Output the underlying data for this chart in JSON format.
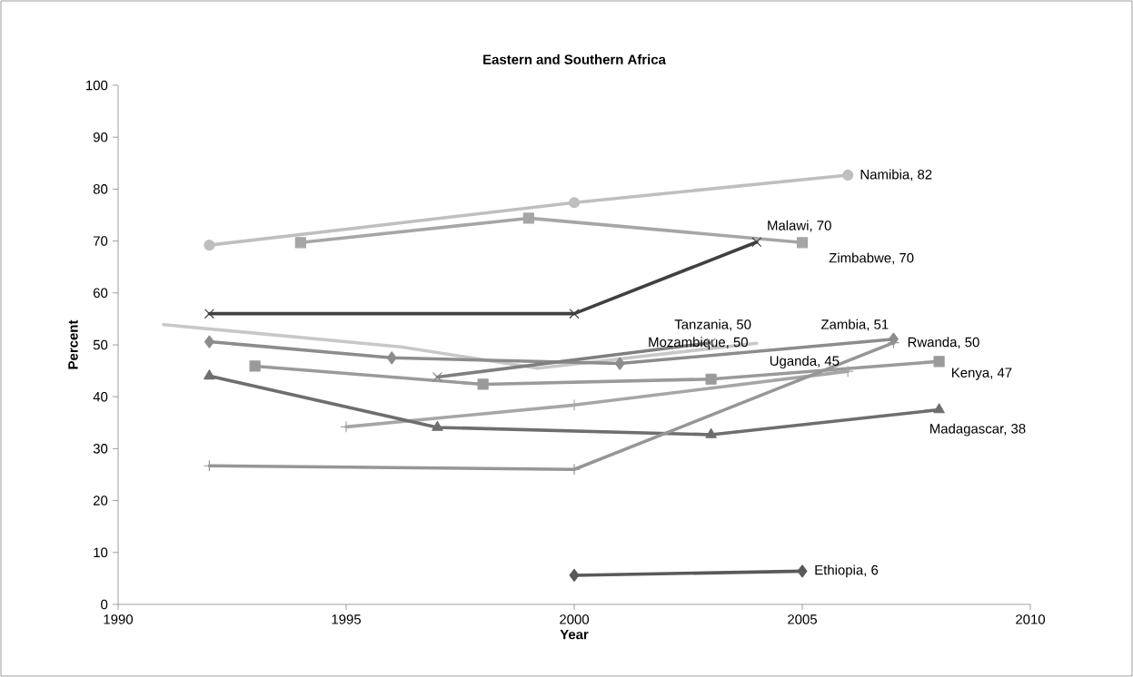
{
  "chart_data": {
    "type": "line",
    "title": "Eastern and Southern Africa",
    "xlabel": "Year",
    "ylabel": "Percent",
    "xlim": [
      1990,
      2010
    ],
    "xticks": [
      1990,
      1995,
      2000,
      2005,
      2010
    ],
    "ylim": [
      0,
      100
    ],
    "yticks": [
      0,
      10,
      20,
      30,
      40,
      50,
      60,
      70,
      80,
      90,
      100
    ],
    "grid": false,
    "series": [
      {
        "color": "#bfbfbf",
        "marker": "circle",
        "x": [
          1992,
          2000,
          2006
        ],
        "values": [
          69.2,
          77.4,
          82.7
        ]
      },
      {
        "color": "#a6a6a6",
        "marker": "square",
        "x": [
          1994,
          1999,
          2005
        ],
        "values": [
          69.7,
          74.4,
          69.7
        ]
      },
      {
        "color": "#404040",
        "marker": "cross",
        "x": [
          1992,
          2000,
          2004
        ],
        "values": [
          56,
          56,
          69.8
        ]
      },
      {
        "color": "#c8c8c8",
        "marker": "none",
        "x": [
          1991,
          1996.2,
          1999.2,
          2004
        ],
        "values": [
          53.9,
          49.6,
          45.5,
          50.3
        ]
      },
      {
        "color": "#8c8c8c",
        "marker": "diamond",
        "x": [
          1992,
          1996,
          2001,
          2007
        ],
        "values": [
          50.6,
          47.5,
          46.4,
          51.1
        ]
      },
      {
        "color": "#9a9a9a",
        "marker": "square",
        "x": [
          1993,
          1998,
          2003,
          2008
        ],
        "values": [
          45.9,
          42.4,
          43.4,
          46.8
        ]
      },
      {
        "color": "#7f7f7f",
        "marker": "cross",
        "x": [
          1997,
          2003
        ],
        "values": [
          43.8,
          50.4
        ]
      },
      {
        "color": "#a6a6a6",
        "marker": "plus",
        "x": [
          1995,
          2000,
          2006
        ],
        "values": [
          34.2,
          38.4,
          44.9
        ]
      },
      {
        "color": "#6e6e6e",
        "marker": "triangle",
        "x": [
          1992,
          1997,
          2003,
          2008
        ],
        "values": [
          44,
          34.1,
          32.7,
          37.5
        ]
      },
      {
        "color": "#969696",
        "marker": "plus",
        "x": [
          1992,
          2000,
          2007
        ],
        "values": [
          26.7,
          26,
          50.4
        ]
      },
      {
        "color": "#595959",
        "marker": "diamond",
        "x": [
          2000,
          2005
        ],
        "values": [
          5.6,
          6.4
        ]
      }
    ],
    "annotations": [
      {
        "text": "Namibia, 82",
        "x": 2006,
        "y": 82.7
      },
      {
        "text": "Malawi, 70",
        "x": 2004,
        "y": 69.8
      },
      {
        "text": "Zimbabwe, 70",
        "x": 2005,
        "y": 69.7
      },
      {
        "text": "Tanzania, 50",
        "x": 2003,
        "y": 50.4
      },
      {
        "text": "Mozambique, 50",
        "x": 2004,
        "y": 50.3
      },
      {
        "text": "Zambia, 51",
        "x": 2007,
        "y": 51.1
      },
      {
        "text": "Rwanda, 50",
        "x": 2007,
        "y": 50.4
      },
      {
        "text": "Uganda, 45",
        "x": 2006,
        "y": 44.9
      },
      {
        "text": "Kenya, 47",
        "x": 2008,
        "y": 46.8
      },
      {
        "text": "Madagascar, 38",
        "x": 2008,
        "y": 37.5
      },
      {
        "text": "Ethiopia, 6",
        "x": 2005,
        "y": 6.4
      }
    ]
  }
}
